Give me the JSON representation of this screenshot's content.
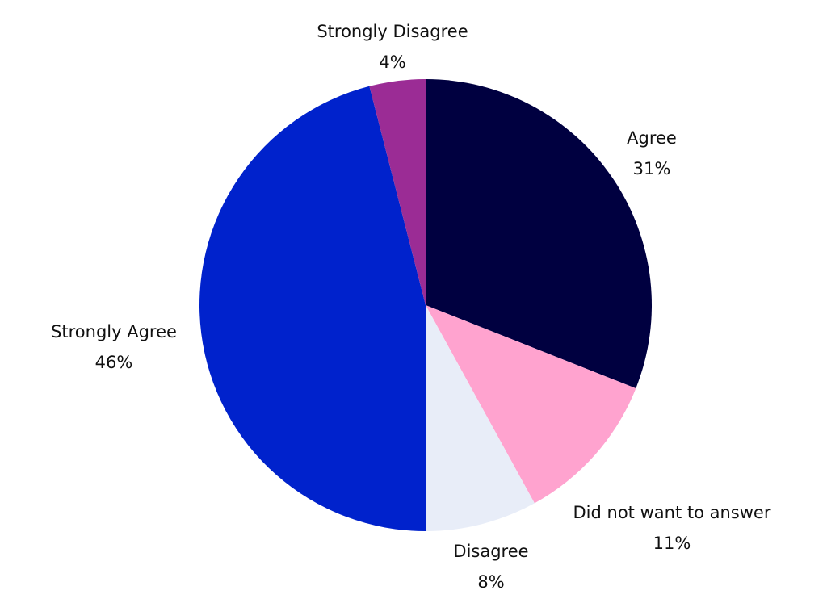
{
  "chart_data": {
    "type": "pie",
    "start_angle_deg": 0,
    "direction": "clockwise",
    "slices": [
      {
        "label": "Agree",
        "value": 31,
        "value_label": "31%",
        "color": "#000040"
      },
      {
        "label": "Did not want to answer",
        "value": 11,
        "value_label": "11%",
        "color": "#FFA3CF"
      },
      {
        "label": "Disagree",
        "value": 8,
        "value_label": "8%",
        "color": "#E8EDF8"
      },
      {
        "label": "Strongly Agree",
        "value": 46,
        "value_label": "46%",
        "color": "#0022CC"
      },
      {
        "label": "Strongly Disagree",
        "value": 4,
        "value_label": "4%",
        "color": "#9B2C95"
      }
    ]
  }
}
